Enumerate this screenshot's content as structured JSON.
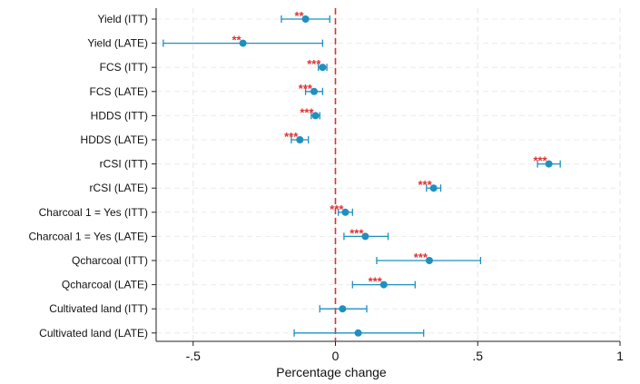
{
  "chart_data": {
    "type": "scatter",
    "subtype": "coefficient-plot-horizontal",
    "title": "",
    "xlabel": "Percentage change",
    "ylabel": "",
    "xlim": [
      -0.63,
      1.0
    ],
    "xticks": [
      -0.5,
      0,
      0.5,
      1
    ],
    "xtick_labels": [
      "-.5",
      "0",
      ".5",
      "1"
    ],
    "reference_line": {
      "x": 0,
      "style": "dashed",
      "color": "#e03030"
    },
    "grid": true,
    "legend": "none",
    "point_color": "#1f8fc0",
    "sig_color": "#e03030",
    "categories": [
      "Yield (ITT)",
      "Yield (LATE)",
      "FCS (ITT)",
      "FCS (LATE)",
      "HDDS (ITT)",
      "HDDS (LATE)",
      "rCSI (ITT)",
      "rCSI (LATE)",
      "Charcoal 1 = Yes (ITT)",
      "Charcoal 1 = Yes (LATE)",
      "Qcharcoal (ITT)",
      "Qcharcoal (LATE)",
      "Cultivated land (ITT)",
      "Cultivated land (LATE)"
    ],
    "estimates": [
      {
        "label": "Yield (ITT)",
        "value": -0.105,
        "ci": [
          -0.19,
          -0.02
        ],
        "sig": "**"
      },
      {
        "label": "Yield (LATE)",
        "value": -0.325,
        "ci": [
          -0.605,
          -0.045
        ],
        "sig": "**"
      },
      {
        "label": "FCS (ITT)",
        "value": -0.045,
        "ci": [
          -0.06,
          -0.03
        ],
        "sig": "***"
      },
      {
        "label": "FCS (LATE)",
        "value": -0.075,
        "ci": [
          -0.105,
          -0.045
        ],
        "sig": "***"
      },
      {
        "label": "HDDS (ITT)",
        "value": -0.07,
        "ci": [
          -0.085,
          -0.055
        ],
        "sig": "***"
      },
      {
        "label": "HDDS (LATE)",
        "value": -0.125,
        "ci": [
          -0.155,
          -0.095
        ],
        "sig": "***"
      },
      {
        "label": "rCSI (ITT)",
        "value": 0.75,
        "ci": [
          0.71,
          0.79
        ],
        "sig": "***"
      },
      {
        "label": "rCSI (LATE)",
        "value": 0.345,
        "ci": [
          0.32,
          0.37
        ],
        "sig": "***"
      },
      {
        "label": "Charcoal 1 = Yes (ITT)",
        "value": 0.035,
        "ci": [
          0.01,
          0.06
        ],
        "sig": "***"
      },
      {
        "label": "Charcoal 1 = Yes (LATE)",
        "value": 0.105,
        "ci": [
          0.03,
          0.185
        ],
        "sig": "***"
      },
      {
        "label": "Qcharcoal (ITT)",
        "value": 0.33,
        "ci": [
          0.145,
          0.51
        ],
        "sig": "***"
      },
      {
        "label": "Qcharcoal (LATE)",
        "value": 0.17,
        "ci": [
          0.06,
          0.28
        ],
        "sig": "***"
      },
      {
        "label": "Cultivated land (ITT)",
        "value": 0.025,
        "ci": [
          -0.055,
          0.11
        ],
        "sig": ""
      },
      {
        "label": "Cultivated land (LATE)",
        "value": 0.08,
        "ci": [
          -0.145,
          0.31
        ],
        "sig": ""
      }
    ]
  }
}
